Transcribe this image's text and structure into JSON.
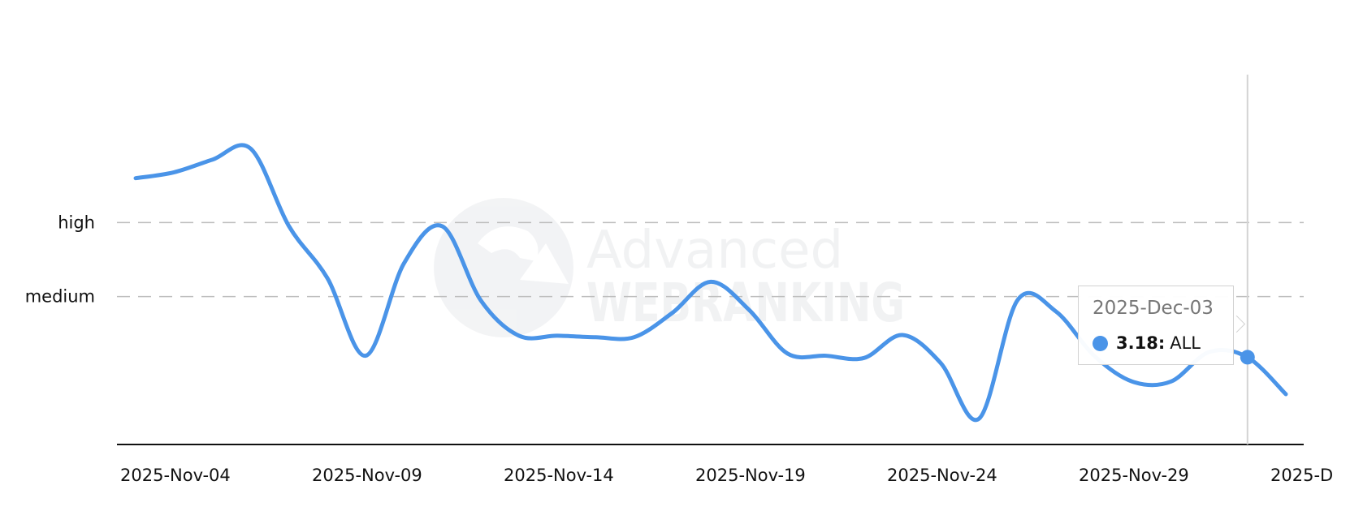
{
  "chart_data": {
    "type": "line",
    "title": "",
    "xlabel": "",
    "ylabel": "",
    "x_tick_labels": [
      "2025-Nov-04",
      "2025-Nov-09",
      "2025-Nov-14",
      "2025-Nov-19",
      "2025-Nov-24",
      "2025-Nov-29",
      "2025-D"
    ],
    "y_tick_labels": [
      {
        "label": "high",
        "value": 5
      },
      {
        "label": "medium",
        "value": 4
      }
    ],
    "ylim": [
      2,
      7
    ],
    "xlim": [
      "2025-Nov-04",
      "2025-Dec-04"
    ],
    "grid": true,
    "x": [
      "2025-Nov-04",
      "2025-Nov-05",
      "2025-Nov-06",
      "2025-Nov-07",
      "2025-Nov-08",
      "2025-Nov-09",
      "2025-Nov-10",
      "2025-Nov-11",
      "2025-Nov-12",
      "2025-Nov-13",
      "2025-Nov-14",
      "2025-Nov-15",
      "2025-Nov-16",
      "2025-Nov-17",
      "2025-Nov-18",
      "2025-Nov-19",
      "2025-Nov-20",
      "2025-Nov-21",
      "2025-Nov-22",
      "2025-Nov-23",
      "2025-Nov-24",
      "2025-Nov-25",
      "2025-Nov-26",
      "2025-Nov-27",
      "2025-Nov-28",
      "2025-Nov-29",
      "2025-Nov-30",
      "2025-Dec-01",
      "2025-Dec-02",
      "2025-Dec-03",
      "2025-Dec-04"
    ],
    "series": [
      {
        "name": "ALL",
        "color": "#4a94e8",
        "values": [
          5.6,
          5.68,
          5.85,
          6.0,
          4.95,
          4.25,
          3.2,
          4.45,
          4.95,
          3.95,
          3.47,
          3.47,
          3.45,
          3.45,
          3.78,
          4.2,
          3.82,
          3.23,
          3.2,
          3.17,
          3.48,
          3.1,
          2.35,
          3.95,
          3.8,
          3.2,
          2.85,
          2.85,
          3.25,
          3.18,
          2.68
        ]
      }
    ]
  },
  "tooltip": {
    "date": "2025-Dec-03",
    "value": "3.18",
    "separator": ":",
    "series": "ALL",
    "color": "#4a94e8"
  },
  "watermark": {
    "line1": "Advanced",
    "line2": "WEBRANKING"
  }
}
